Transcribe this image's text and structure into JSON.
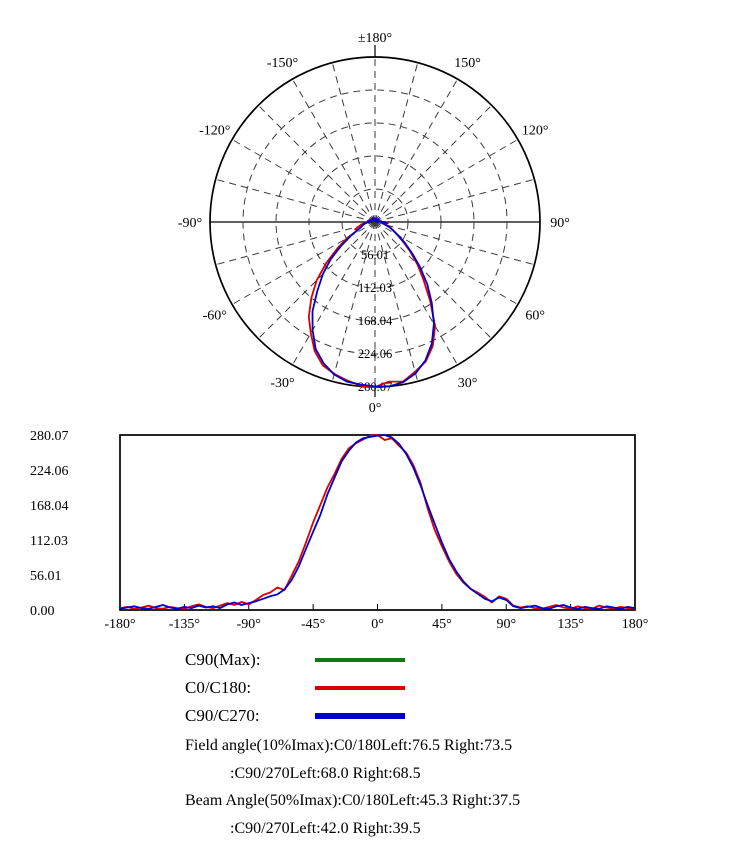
{
  "legend": {
    "items": [
      {
        "label": "C90(Max):",
        "color": "#127a12"
      },
      {
        "label": "C0/C180:",
        "color": "#dd0000"
      },
      {
        "label": "C90/C270:",
        "color": "#0000cc"
      }
    ]
  },
  "annotations": {
    "field_line1": "Field angle(10%Imax):C0/180Left:76.5 Right:73.5",
    "field_line2": ":C90/270Left:68.0 Right:68.5",
    "beam_line1": "Beam Angle(50%Imax):C0/180Left:45.3 Right:37.5",
    "beam_line2": ":C90/270Left:42.0 Right:39.5"
  },
  "chart_data": {
    "type": "polar+line",
    "angles": [
      -180,
      -175,
      -170,
      -165,
      -160,
      -155,
      -150,
      -145,
      -140,
      -135,
      -130,
      -125,
      -120,
      -115,
      -110,
      -105,
      -100,
      -95,
      -90,
      -85,
      -80,
      -75,
      -70,
      -65,
      -60,
      -55,
      -50,
      -45,
      -40,
      -35,
      -30,
      -25,
      -20,
      -15,
      -10,
      -5,
      0,
      5,
      10,
      15,
      20,
      25,
      30,
      35,
      40,
      45,
      50,
      55,
      60,
      65,
      70,
      75,
      80,
      85,
      90,
      95,
      100,
      105,
      110,
      115,
      120,
      125,
      130,
      135,
      140,
      145,
      150,
      155,
      160,
      165,
      170,
      175,
      180
    ],
    "series": [
      {
        "name": "C90(Max)",
        "color": "#127a12",
        "values": []
      },
      {
        "name": "C0/C180",
        "color": "#dd0000",
        "values": [
          3,
          5,
          2,
          4,
          7,
          3,
          2,
          5,
          3,
          2,
          6,
          9,
          5,
          3,
          7,
          11,
          8,
          13,
          9,
          16,
          24,
          28,
          36,
          32,
          55,
          78,
          108,
          140,
          168,
          196,
          218,
          242,
          259,
          267,
          273,
          279,
          280,
          272,
          275,
          263,
          252,
          232,
          204,
          163,
          128,
          102,
          78,
          58,
          44,
          34,
          28,
          21,
          12,
          22,
          18,
          7,
          4,
          6,
          3,
          2,
          5,
          8,
          4,
          2,
          6,
          3,
          2,
          7,
          4,
          2,
          5,
          3,
          2
        ]
      },
      {
        "name": "C90/C270",
        "color": "#0000cc",
        "values": [
          2,
          4,
          6,
          3,
          2,
          5,
          8,
          4,
          2,
          5,
          3,
          7,
          4,
          6,
          3,
          9,
          12,
          8,
          11,
          14,
          18,
          22,
          25,
          33,
          48,
          70,
          98,
          125,
          152,
          185,
          212,
          238,
          255,
          268,
          275,
          277,
          279,
          280,
          276,
          266,
          250,
          228,
          200,
          168,
          138,
          108,
          82,
          62,
          46,
          34,
          26,
          18,
          14,
          20,
          16,
          6,
          3,
          5,
          7,
          3,
          2,
          6,
          8,
          4,
          2,
          5,
          3,
          2,
          6,
          4,
          2,
          5,
          3
        ]
      }
    ],
    "polar": {
      "rmax": 280.07,
      "ring_values": [
        56.01,
        112.03,
        168.04,
        224.06,
        280.07
      ],
      "ring_labels": [
        "56.01",
        "112.03",
        "168.04",
        "224.06",
        "280.07"
      ],
      "spoke_step_deg": 15,
      "angle_labels": [
        {
          "angle": 0,
          "label": "0°"
        },
        {
          "angle": 30,
          "label": "30°"
        },
        {
          "angle": 60,
          "label": "60°"
        },
        {
          "angle": 90,
          "label": "90°"
        },
        {
          "angle": 120,
          "label": "120°"
        },
        {
          "angle": 150,
          "label": "150°"
        },
        {
          "angle": 180,
          "label": "±180°"
        },
        {
          "angle": -150,
          "label": "-150°"
        },
        {
          "angle": -120,
          "label": "-120°"
        },
        {
          "angle": -90,
          "label": "-90°"
        },
        {
          "angle": -60,
          "label": "-60°"
        },
        {
          "angle": -30,
          "label": "-30°"
        }
      ]
    },
    "cartesian": {
      "xlim": [
        -180,
        180
      ],
      "ylim": [
        0,
        280.07
      ],
      "xticks": [
        {
          "value": -180,
          "label": "-180°"
        },
        {
          "value": -135,
          "label": "-135°"
        },
        {
          "value": -90,
          "label": "-90°"
        },
        {
          "value": -45,
          "label": "-45°"
        },
        {
          "value": 0,
          "label": "0°"
        },
        {
          "value": 45,
          "label": "45°"
        },
        {
          "value": 90,
          "label": "90°"
        },
        {
          "value": 135,
          "label": "135°"
        },
        {
          "value": 180,
          "label": "180°"
        }
      ],
      "yticks": [
        {
          "value": 280.07,
          "label": "280.07"
        },
        {
          "value": 224.06,
          "label": "224.06"
        },
        {
          "value": 168.04,
          "label": "168.04"
        },
        {
          "value": 112.03,
          "label": "112.03"
        },
        {
          "value": 56.01,
          "label": "56.01"
        },
        {
          "value": 0,
          "label": "0.00"
        }
      ]
    }
  }
}
